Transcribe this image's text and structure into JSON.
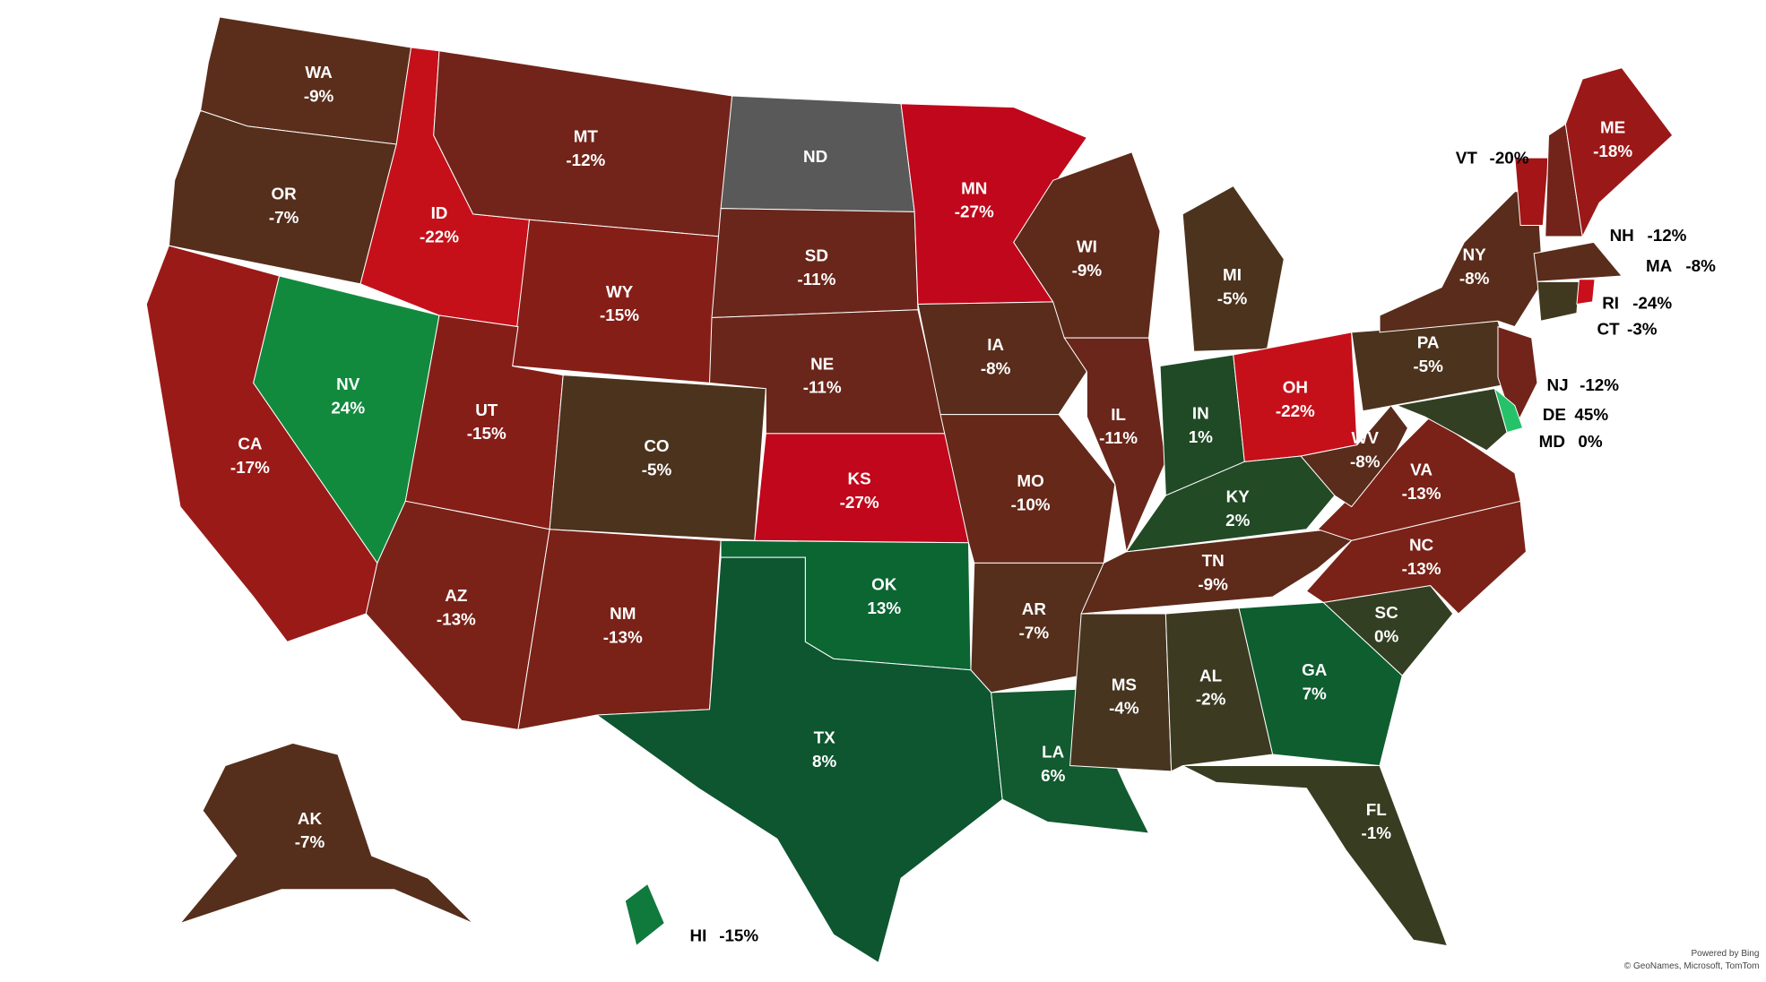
{
  "chart_data": {
    "type": "map",
    "categories": [
      "WA",
      "OR",
      "CA",
      "NV",
      "ID",
      "MT",
      "WY",
      "UT",
      "CO",
      "AZ",
      "NM",
      "ND",
      "SD",
      "NE",
      "KS",
      "OK",
      "TX",
      "MN",
      "IA",
      "MO",
      "AR",
      "LA",
      "WI",
      "IL",
      "MI",
      "IN",
      "OH",
      "KY",
      "TN",
      "MS",
      "AL",
      "GA",
      "FL",
      "SC",
      "NC",
      "VA",
      "WV",
      "PA",
      "NY",
      "NJ",
      "DE",
      "MD",
      "VT",
      "NH",
      "ME",
      "MA",
      "CT",
      "RI",
      "AK",
      "HI"
    ],
    "values": [
      -9,
      -7,
      -17,
      24,
      -22,
      -12,
      -15,
      -15,
      -5,
      -13,
      -13,
      null,
      -11,
      -11,
      -27,
      13,
      8,
      -27,
      -8,
      -10,
      -7,
      6,
      -9,
      -11,
      -5,
      1,
      -22,
      2,
      -9,
      -4,
      -2,
      7,
      -1,
      0,
      -13,
      -13,
      -8,
      -5,
      -8,
      -12,
      45,
      0,
      -20,
      -12,
      -18,
      -8,
      -3,
      -24,
      -7,
      -15
    ],
    "value_labels": [
      "-9%",
      "-7%",
      "-17%",
      "24%",
      "-22%",
      "-12%",
      "-15%",
      "-15%",
      "-5%",
      "-13%",
      "-13%",
      null,
      "-11%",
      "-11%",
      "-27%",
      "13%",
      "8%",
      "-27%",
      "-8%",
      "-10%",
      "-7%",
      "6%",
      "-9%",
      "-11%",
      "-5%",
      "1%",
      "-22%",
      "2%",
      "-9%",
      "-4%",
      "-2%",
      "7%",
      "-1%",
      "0%",
      "-13%",
      "-13%",
      "-8%",
      "-5%",
      "-8%",
      "-12%",
      "45%",
      "0%",
      "-20%",
      "-12%",
      "-18%",
      "-8%",
      "-3%",
      "-24%",
      "-7%",
      "-15%"
    ],
    "colors": [
      "#5b2e1c",
      "#552f1c",
      "#9a1a18",
      "#128a3e",
      "#c5101a",
      "#72241a",
      "#861e18",
      "#861e18",
      "#4c331d",
      "#7a2218",
      "#7a2218",
      "#595959",
      "#6a261a",
      "#6a261a",
      "#c0071b",
      "#0b6632",
      "#0d5630",
      "#c0071b",
      "#5a2c1b",
      "#652819",
      "#552f1c",
      "#125a2f",
      "#5e2a1a",
      "#6a261a",
      "#4c331d",
      "#1f4a25",
      "#c5101a",
      "#214a25",
      "#5e2a1a",
      "#473520",
      "#3c3a20",
      "#0e5e30",
      "#383d22",
      "#333f22",
      "#7a2218",
      "#7a2218",
      "#5a2c1b",
      "#4c331d",
      "#5a2c1b",
      "#72241a",
      "#25c26a",
      "#333f22",
      "#a31517",
      "#72241a",
      "#9b1819",
      "#5a2c1b",
      "#40381f",
      "#c90f1b",
      "#552f1c",
      "#0f7a3c"
    ],
    "attribution": [
      "Powered by Bing",
      "© GeoNames, Microsoft, TomTom"
    ]
  }
}
